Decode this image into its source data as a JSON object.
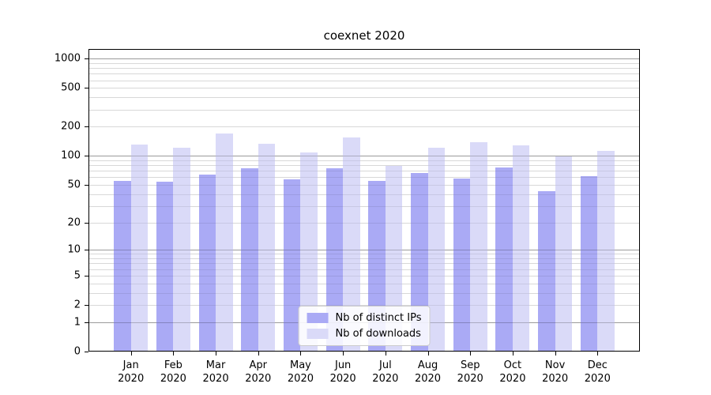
{
  "chart_data": {
    "type": "bar",
    "title": "coexnet 2020",
    "categories": [
      "Jan 2020",
      "Feb 2020",
      "Mar 2020",
      "Apr 2020",
      "May 2020",
      "Jun 2020",
      "Jul 2020",
      "Aug 2020",
      "Sep 2020",
      "Oct 2020",
      "Nov 2020",
      "Dec 2020"
    ],
    "series": [
      {
        "name": "Nb of distinct IPs",
        "color": "#aaaaf5",
        "values": [
          55,
          54,
          64,
          74,
          57,
          75,
          55,
          66,
          58,
          76,
          43,
          61
        ]
      },
      {
        "name": "Nb of downloads",
        "color": "#dadaf8",
        "values": [
          130,
          122,
          170,
          133,
          108,
          155,
          79,
          122,
          138,
          129,
          98,
          112
        ]
      }
    ],
    "yscale": "log1p",
    "yticks": [
      0,
      1,
      2,
      5,
      10,
      20,
      50,
      100,
      200,
      500,
      1000
    ],
    "ylim": [
      0,
      1250
    ],
    "grid": true,
    "legend_position": "lower center",
    "gridline_major_values": [
      1,
      10,
      100,
      1000
    ],
    "colors": {
      "grid_major": "#c7c7c7",
      "grid_minor": "#ebebeb",
      "spine": "#000000"
    }
  }
}
